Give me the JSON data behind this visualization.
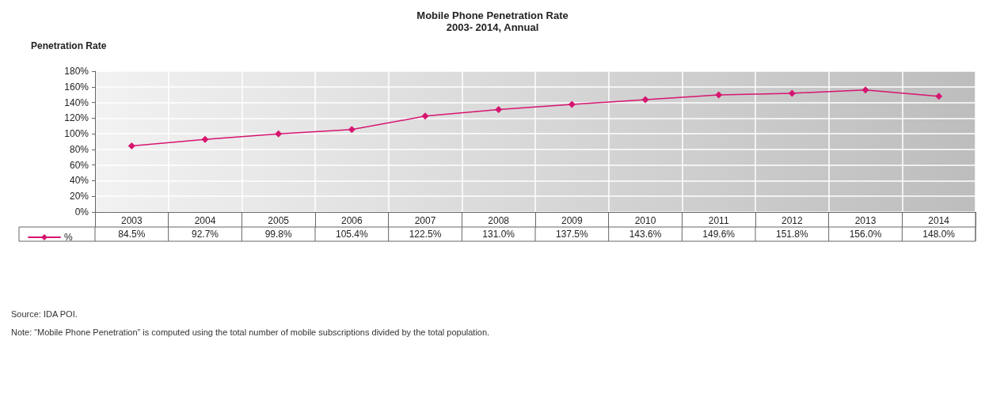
{
  "chart_data": {
    "type": "line",
    "title": "Mobile Phone Penetration Rate",
    "subtitle": "2003- 2014, Annual",
    "ylabel": "Penetration Rate",
    "categories": [
      "2003",
      "2004",
      "2005",
      "2006",
      "2007",
      "2008",
      "2009",
      "2010",
      "2011",
      "2012",
      "2013",
      "2014"
    ],
    "series": [
      {
        "name": "%",
        "color": "#d6156f",
        "values": [
          84.5,
          92.7,
          99.8,
          105.4,
          122.5,
          131.0,
          137.5,
          143.6,
          149.6,
          151.8,
          156.0,
          148.0
        ],
        "value_labels": [
          "84.5%",
          "92.7%",
          "99.8%",
          "105.4%",
          "122.5%",
          "131.0%",
          "137.5%",
          "143.6%",
          "149.6%",
          "151.8%",
          "156.0%",
          "148.0%"
        ]
      }
    ],
    "ylim": [
      0,
      180
    ],
    "yticks": [
      {
        "value": 0,
        "label": "0%"
      },
      {
        "value": 20,
        "label": "20%"
      },
      {
        "value": 40,
        "label": "40%"
      },
      {
        "value": 60,
        "label": "60%"
      },
      {
        "value": 80,
        "label": "80%"
      },
      {
        "value": 100,
        "label": "100%"
      },
      {
        "value": 120,
        "label": "120%"
      },
      {
        "value": 140,
        "label": "140%"
      },
      {
        "value": 160,
        "label": "160%"
      },
      {
        "value": 180,
        "label": "180%"
      }
    ],
    "grid": true,
    "legend": "bottom left",
    "marker": "diamond",
    "line_style": "solid",
    "annotations": [
      "Source: IDA POI.",
      "Note: “Mobile Phone Penetration” is computed using the total number of mobile subscriptions divided by the total population."
    ]
  }
}
